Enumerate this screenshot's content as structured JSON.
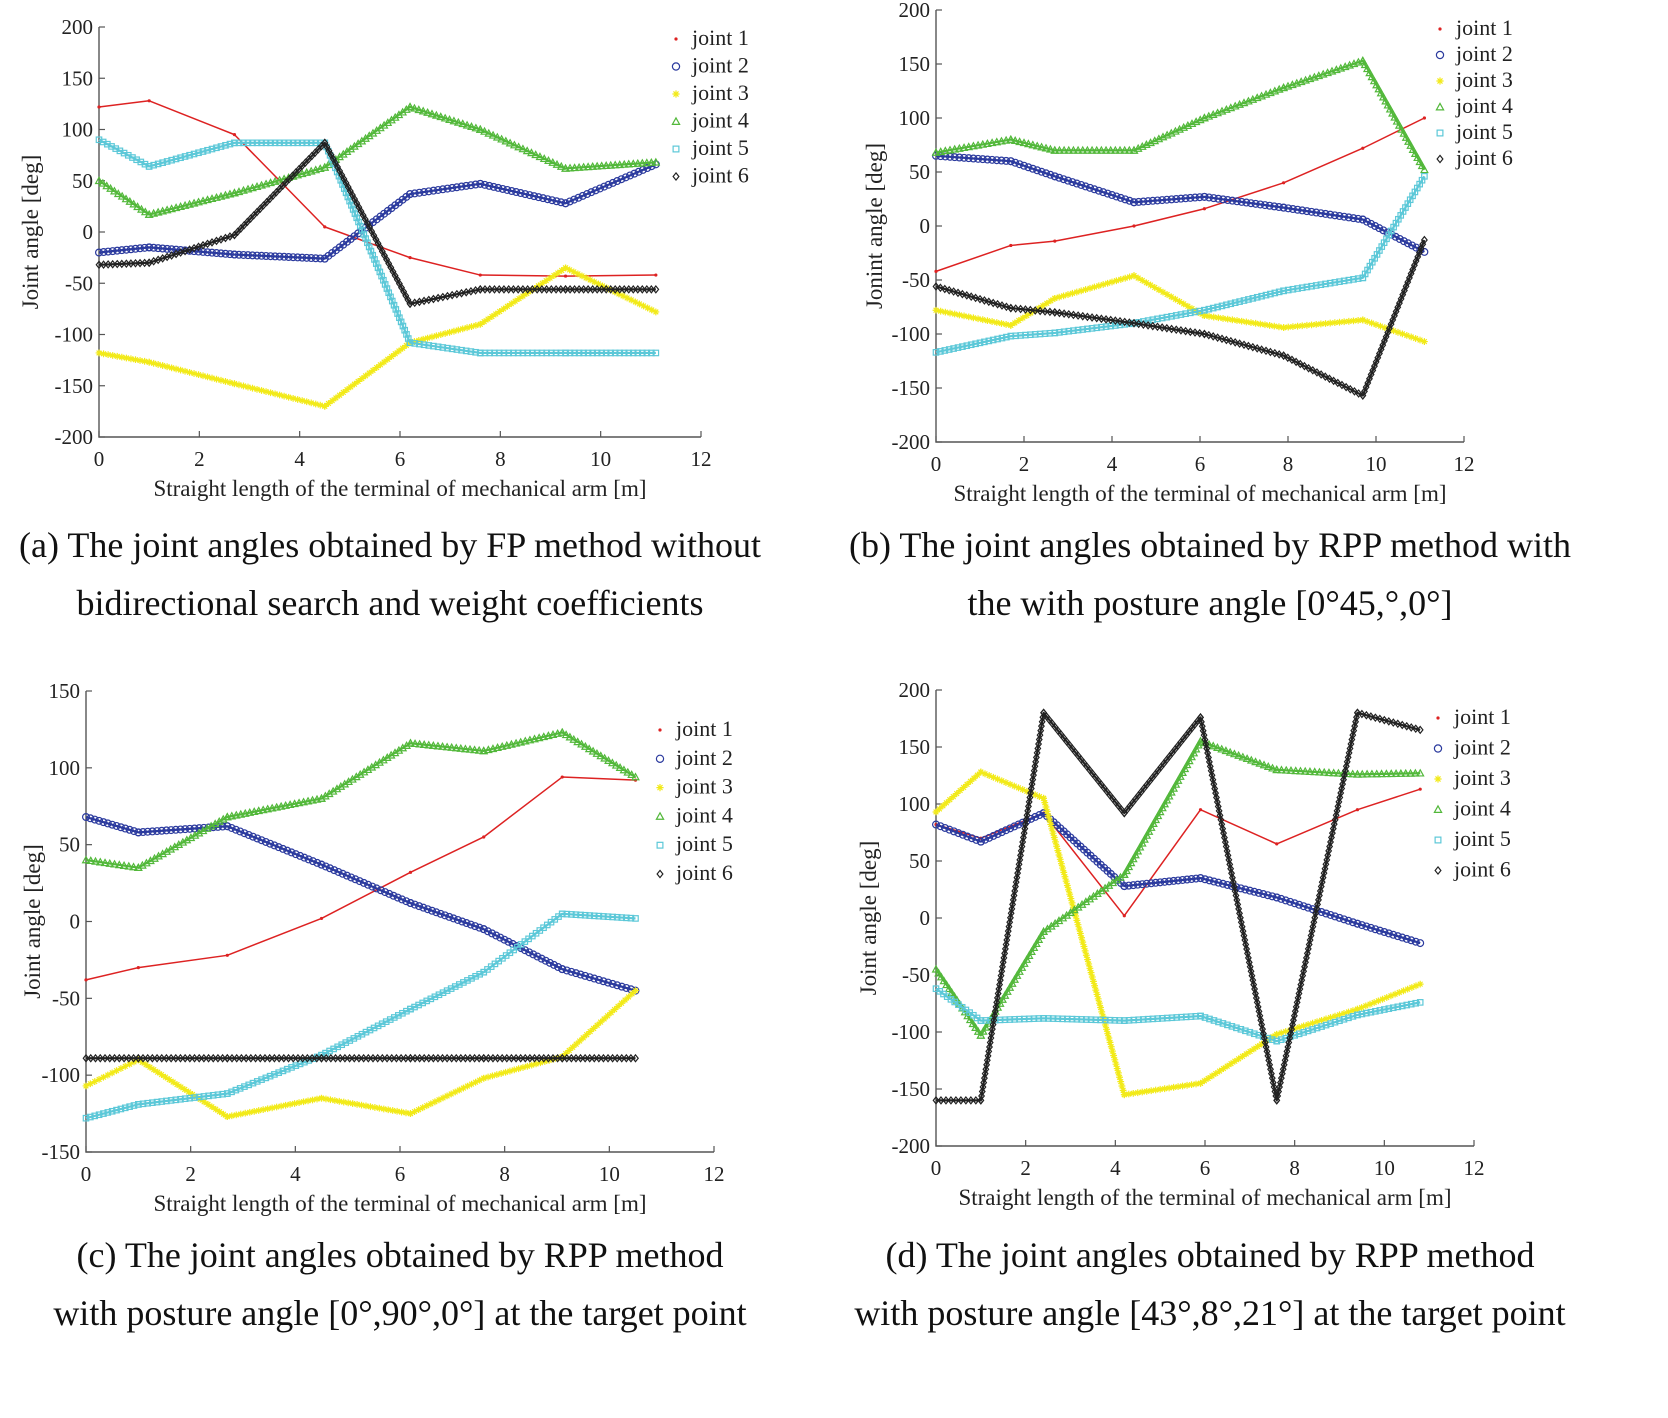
{
  "legend_colors": [
    "#dd2222",
    "#2b3a9e",
    "#f2ea18",
    "#52b83a",
    "#5cc8d8",
    "#222222"
  ],
  "chart_data": [
    {
      "type": "line",
      "caption_line1": "(a) The joint angles obtained by FP method without",
      "caption_line2": "bidirectional search and weight coefficients",
      "xlabel": "Straight length of the terminal of mechanical arm [m]",
      "ylabel": "Joint angle [deg]",
      "xlim": [
        0,
        12
      ],
      "ylim": [
        -200,
        200
      ],
      "xticks": [
        "0",
        "2",
        "4",
        "6",
        "8",
        "10",
        "12"
      ],
      "yticks": [
        "200",
        "150",
        "100",
        "50",
        "0",
        "-50",
        "-100",
        "-150",
        "-200"
      ],
      "legend": [
        "joint 1",
        "joint 2",
        "joint 3",
        "joint 4",
        "joint 5",
        "joint 6"
      ],
      "series": [
        {
          "name": "joint 1",
          "x": [
            0,
            1,
            2.7,
            4.5,
            6.2,
            7.6,
            9.3,
            11.1
          ],
          "y": [
            122,
            128,
            95,
            5,
            -25,
            -42,
            -43,
            -42
          ]
        },
        {
          "name": "joint 2",
          "x": [
            0,
            1,
            2.7,
            4.5,
            6.2,
            7.6,
            9.3,
            11.1
          ],
          "y": [
            -20,
            -15,
            -22,
            -26,
            37,
            47,
            28,
            66
          ]
        },
        {
          "name": "joint 3",
          "x": [
            0,
            1,
            2.7,
            4.5,
            6.2,
            7.6,
            9.3,
            11.1
          ],
          "y": [
            -118,
            -127,
            -148,
            -170,
            -108,
            -90,
            -35,
            -78
          ]
        },
        {
          "name": "joint 4",
          "x": [
            0,
            1,
            2.7,
            4.5,
            6.2,
            7.6,
            9.3,
            11.1
          ],
          "y": [
            50,
            17,
            38,
            63,
            122,
            100,
            62,
            68
          ]
        },
        {
          "name": "joint 5",
          "x": [
            0,
            1,
            2.7,
            4.5,
            6.2,
            7.6,
            9.3,
            11.1
          ],
          "y": [
            90,
            64,
            87,
            87,
            -108,
            -118,
            -118,
            -118
          ]
        },
        {
          "name": "joint 6",
          "x": [
            0,
            1,
            2.7,
            4.5,
            6.2,
            7.6,
            9.3,
            11.1
          ],
          "y": [
            -32,
            -30,
            -3,
            87,
            -70,
            -56,
            -56,
            -56
          ]
        }
      ]
    },
    {
      "type": "line",
      "caption_line1": "(b) The joint angles obtained by RPP method with",
      "caption_line2": "the with posture angle [0°45,°,0°]",
      "xlabel": "Straight length of the terminal of mechanical arm [m]",
      "ylabel": "Jonint angle [deg]",
      "xlim": [
        0,
        12
      ],
      "ylim": [
        -200,
        200
      ],
      "xticks": [
        "0",
        "2",
        "4",
        "6",
        "8",
        "10",
        "12"
      ],
      "yticks": [
        "200",
        "150",
        "100",
        "50",
        "0",
        "-50",
        "-100",
        "-150",
        "-200"
      ],
      "legend": [
        "joint 1",
        "joint 2",
        "joint 3",
        "joint 4",
        "joint 5",
        "joint 6"
      ],
      "series": [
        {
          "name": "joint 1",
          "x": [
            0,
            1.7,
            2.7,
            4.5,
            6.1,
            7.9,
            9.7,
            11.1
          ],
          "y": [
            -42,
            -18,
            -14,
            0,
            16,
            40,
            72,
            100
          ]
        },
        {
          "name": "joint 2",
          "x": [
            0,
            1.7,
            2.7,
            4.5,
            6.1,
            7.9,
            9.7,
            11.1
          ],
          "y": [
            65,
            60,
            46,
            22,
            27,
            17,
            6,
            -24
          ]
        },
        {
          "name": "joint 3",
          "x": [
            0,
            1.7,
            2.7,
            4.5,
            6.1,
            7.9,
            9.7,
            11.1
          ],
          "y": [
            -78,
            -92,
            -67,
            -46,
            -83,
            -94,
            -87,
            -107
          ]
        },
        {
          "name": "joint 4",
          "x": [
            0,
            1.7,
            2.7,
            4.5,
            6.1,
            7.9,
            9.7,
            11.1
          ],
          "y": [
            68,
            80,
            70,
            70,
            100,
            128,
            153,
            52
          ]
        },
        {
          "name": "joint 5",
          "x": [
            0,
            1.7,
            2.7,
            4.5,
            6.1,
            7.9,
            9.7,
            11.1
          ],
          "y": [
            -117,
            -102,
            -99,
            -90,
            -78,
            -60,
            -48,
            46
          ]
        },
        {
          "name": "joint 6",
          "x": [
            0,
            1.7,
            2.7,
            4.5,
            6.1,
            7.9,
            9.7,
            11.1
          ],
          "y": [
            -56,
            -76,
            -80,
            -90,
            -100,
            -120,
            -157,
            -13
          ]
        }
      ]
    },
    {
      "type": "line",
      "caption_line1": "(c) The joint angles obtained by RPP method",
      "caption_line2": "with posture angle [0°,90°,0°] at the target point",
      "xlabel": "Straight length of the terminal of mechanical arm [m]",
      "ylabel": "Joint angle [deg]",
      "xlim": [
        0,
        12
      ],
      "ylim": [
        -150,
        150
      ],
      "xticks": [
        "0",
        "2",
        "4",
        "6",
        "8",
        "10",
        "12"
      ],
      "yticks": [
        "150",
        "100",
        "50",
        "0",
        "-50",
        "-100",
        "-150"
      ],
      "legend": [
        "joint 1",
        "joint 2",
        "joint 3",
        "joint 4",
        "joint 5",
        "joint 6"
      ],
      "series": [
        {
          "name": "joint 1",
          "x": [
            0,
            1,
            2.7,
            4.5,
            6.2,
            7.6,
            9.1,
            10.5
          ],
          "y": [
            -38,
            -30,
            -22,
            2,
            32,
            55,
            94,
            92
          ]
        },
        {
          "name": "joint 2",
          "x": [
            0,
            1,
            2.7,
            4.5,
            6.2,
            7.6,
            9.1,
            10.5
          ],
          "y": [
            68,
            58,
            62,
            37,
            12,
            -5,
            -31,
            -45
          ]
        },
        {
          "name": "joint 3",
          "x": [
            0,
            1,
            2.7,
            4.5,
            6.2,
            7.6,
            9.1,
            10.5
          ],
          "y": [
            -107,
            -90,
            -127,
            -115,
            -125,
            -102,
            -88,
            -45
          ]
        },
        {
          "name": "joint 4",
          "x": [
            0,
            1,
            2.7,
            4.5,
            6.2,
            7.6,
            9.1,
            10.5
          ],
          "y": [
            40,
            35,
            68,
            80,
            116,
            111,
            123,
            94
          ]
        },
        {
          "name": "joint 5",
          "x": [
            0,
            1,
            2.7,
            4.5,
            6.2,
            7.6,
            9.1,
            10.5
          ],
          "y": [
            -128,
            -119,
            -112,
            -87,
            -57,
            -33,
            5,
            2
          ]
        },
        {
          "name": "joint 6",
          "x": [
            0,
            1,
            2.7,
            4.5,
            6.2,
            7.6,
            9.1,
            10.5
          ],
          "y": [
            -89,
            -89,
            -89,
            -89,
            -89,
            -89,
            -89,
            -89
          ]
        }
      ]
    },
    {
      "type": "line",
      "caption_line1": "(d) The joint angles obtained by RPP method",
      "caption_line2": "with posture angle [43°,8°,21°] at the target point",
      "xlabel": "Straight length of the terminal of mechanical arm [m]",
      "ylabel": "Joint angle [deg]",
      "xlim": [
        0,
        12
      ],
      "ylim": [
        -200,
        200
      ],
      "xticks": [
        "0",
        "2",
        "4",
        "6",
        "8",
        "10",
        "12"
      ],
      "yticks": [
        "200",
        "150",
        "100",
        "50",
        "0",
        "-50",
        "-100",
        "-150",
        "-200"
      ],
      "legend": [
        "joint 1",
        "joint 2",
        "joint 3",
        "joint 4",
        "joint 5",
        "joint 6"
      ],
      "series": [
        {
          "name": "joint 1",
          "x": [
            0,
            1,
            2.4,
            4.2,
            5.9,
            7.6,
            9.4,
            10.8
          ],
          "y": [
            82,
            70,
            92,
            2,
            95,
            65,
            95,
            113
          ]
        },
        {
          "name": "joint 2",
          "x": [
            0,
            1,
            2.4,
            4.2,
            5.9,
            7.6,
            9.4,
            10.8
          ],
          "y": [
            82,
            67,
            92,
            28,
            35,
            18,
            -5,
            -22
          ]
        },
        {
          "name": "joint 3",
          "x": [
            0,
            1,
            2.4,
            4.2,
            5.9,
            7.6,
            9.4,
            10.8
          ],
          "y": [
            93,
            128,
            105,
            -155,
            -145,
            -102,
            -80,
            -58
          ]
        },
        {
          "name": "joint 4",
          "x": [
            0,
            1,
            2.4,
            4.2,
            5.9,
            7.6,
            9.4,
            10.8
          ],
          "y": [
            -45,
            -103,
            -12,
            38,
            155,
            130,
            126,
            127
          ]
        },
        {
          "name": "joint 5",
          "x": [
            0,
            1,
            2.4,
            4.2,
            5.9,
            7.6,
            9.4,
            10.8
          ],
          "y": [
            -62,
            -90,
            -88,
            -90,
            -86,
            -108,
            -85,
            -74
          ]
        },
        {
          "name": "joint 6",
          "x": [
            0,
            1,
            2.4,
            4.2,
            5.9,
            7.6,
            9.4,
            10.8
          ],
          "y": [
            -160,
            -160,
            180,
            92,
            176,
            -160,
            180,
            165
          ]
        }
      ]
    }
  ]
}
